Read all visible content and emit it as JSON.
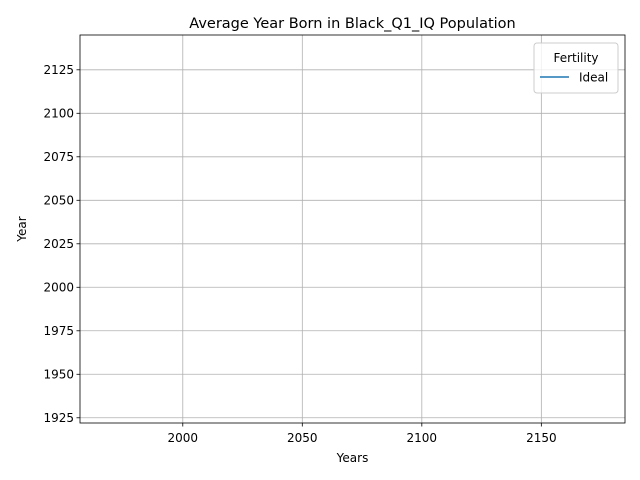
{
  "chart_data": {
    "type": "line",
    "title": "Average Year Born in Black_Q1_IQ Population",
    "xlabel": "Years",
    "ylabel": "Year",
    "xlim": [
      1957,
      2185
    ],
    "ylim": [
      1922,
      2145
    ],
    "xticks": [
      2000,
      2050,
      2100,
      2150
    ],
    "yticks": [
      1925,
      1950,
      1975,
      2000,
      2025,
      2050,
      2075,
      2100,
      2125
    ],
    "grid": true,
    "legend": {
      "title": "Fertility",
      "placement": "top-right",
      "entries": [
        {
          "name": "Ideal",
          "color": "#1f77b4"
        }
      ]
    },
    "series": [
      {
        "name": "Ideal",
        "color": "#1f77b4",
        "x": [],
        "y": []
      }
    ]
  }
}
